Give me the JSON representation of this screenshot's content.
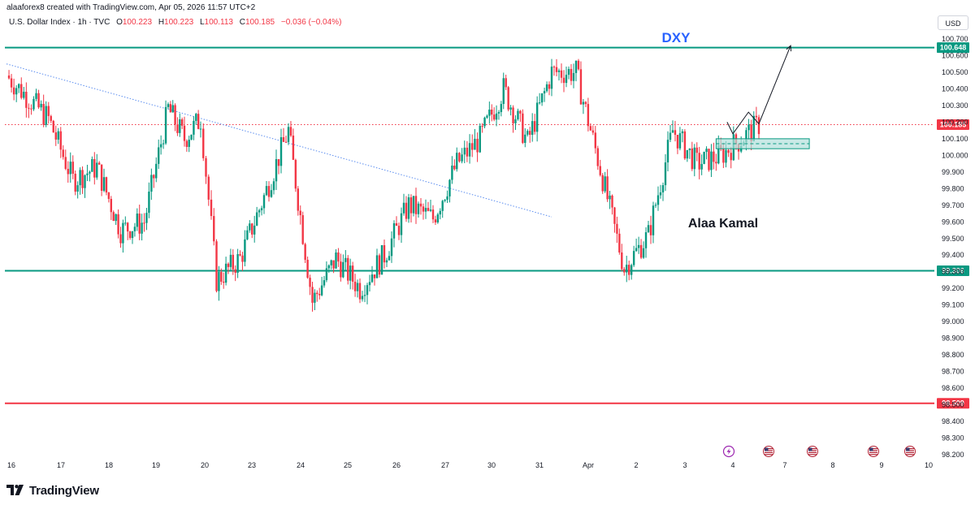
{
  "header": {
    "creator_line": "alaaforex8 created with TradingView.com, Apr 05, 2026 11:57 UTC+2",
    "symbol": "U.S. Dollar Index · 1h · TVC",
    "open_label": "O",
    "open": "100.223",
    "high_label": "H",
    "high": "100.223",
    "low_label": "L",
    "low": "100.113",
    "close_label": "C",
    "close": "100.185",
    "change": "−0.036 (−0.04%)"
  },
  "currency_button": "USD",
  "brand": "TradingView",
  "colors": {
    "up": "#089981",
    "down": "#f23645",
    "support_line": "#089981",
    "stop_line": "#f23645",
    "trend_line": "#5b8def",
    "label_blue": "#2962ff"
  },
  "chart_data": {
    "type": "candlestick",
    "title": "DXY",
    "annotation": "Alaa Kamal",
    "ylim": [
      98.2,
      100.7
    ],
    "y_ticks": [
      "100.700",
      "100.600",
      "100.500",
      "100.400",
      "100.300",
      "100.200",
      "100.100",
      "100.000",
      "99.900",
      "99.800",
      "99.700",
      "99.600",
      "99.500",
      "99.400",
      "99.300",
      "99.200",
      "99.100",
      "99.000",
      "98.900",
      "98.800",
      "98.700",
      "98.600",
      "98.500",
      "98.400",
      "98.300",
      "98.200"
    ],
    "x_labels": [
      "16",
      "17",
      "18",
      "19",
      "20",
      "23",
      "24",
      "25",
      "26",
      "27",
      "30",
      "31",
      "Apr",
      "2",
      "3",
      "4",
      "7",
      "8",
      "9",
      "10"
    ],
    "horizontal_levels": [
      {
        "value": 100.648,
        "label": "100.648",
        "color": "#089981"
      },
      {
        "value": 100.185,
        "label": "100.185",
        "color": "#f23645",
        "style": "dotted"
      },
      {
        "value": 99.306,
        "label": "99.306",
        "color": "#089981"
      },
      {
        "value": 98.509,
        "label": "98.509",
        "color": "#f23645"
      }
    ],
    "trend_line": {
      "from": {
        "date": "16",
        "value": 100.55
      },
      "to": {
        "date": "31",
        "value": 99.63
      }
    },
    "demand_zone": {
      "from_date": "3",
      "to_date": "4",
      "low": 100.04,
      "high": 100.1
    },
    "projection_path": [
      {
        "date": "3",
        "value": 100.2
      },
      {
        "date": "3",
        "value": 100.13
      },
      {
        "date": "4",
        "value": 100.26
      },
      {
        "date": "4",
        "value": 100.19
      },
      {
        "date": "7",
        "value": 100.66
      }
    ],
    "event_icons": [
      "lightning-icon",
      "us-flag-icon",
      "us-flag-icon",
      "us-flag-icon",
      "us-flag-icon"
    ],
    "price_path": [
      {
        "date": "16",
        "value": 100.48
      },
      {
        "date": "16",
        "value": 100.22
      },
      {
        "date": "17",
        "value": 99.85
      },
      {
        "date": "17",
        "value": 99.93
      },
      {
        "date": "18",
        "value": 99.55
      },
      {
        "date": "18",
        "value": 99.6
      },
      {
        "date": "19",
        "value": 100.28
      },
      {
        "date": "19",
        "value": 100.1
      },
      {
        "date": "19",
        "value": 100.22
      },
      {
        "date": "20",
        "value": 99.25
      },
      {
        "date": "20",
        "value": 99.38
      },
      {
        "date": "23",
        "value": 99.75
      },
      {
        "date": "23",
        "value": 100.15
      },
      {
        "date": "24",
        "value": 99.12
      },
      {
        "date": "24",
        "value": 99.38
      },
      {
        "date": "25",
        "value": 99.2
      },
      {
        "date": "25",
        "value": 99.4
      },
      {
        "date": "26",
        "value": 99.7
      },
      {
        "date": "26",
        "value": 99.62
      },
      {
        "date": "27",
        "value": 99.95
      },
      {
        "date": "27",
        "value": 100.1
      },
      {
        "date": "30",
        "value": 100.4
      },
      {
        "date": "30",
        "value": 100.08
      },
      {
        "date": "31",
        "value": 100.5
      },
      {
        "date": "31",
        "value": 100.5
      },
      {
        "date": "Apr",
        "value": 99.92
      },
      {
        "date": "Apr",
        "value": 99.32
      },
      {
        "date": "2",
        "value": 99.52
      },
      {
        "date": "2",
        "value": 100.15
      },
      {
        "date": "3",
        "value": 99.95
      },
      {
        "date": "3",
        "value": 100.0
      },
      {
        "date": "4",
        "value": 100.185
      }
    ]
  }
}
